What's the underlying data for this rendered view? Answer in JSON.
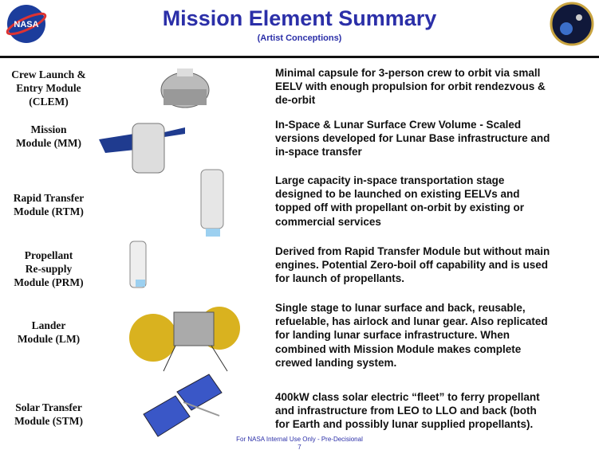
{
  "header": {
    "title": "Mission Element Summary",
    "subtitle": "(Artist Conceptions)"
  },
  "rows": [
    {
      "name_lines": [
        "Crew Launch &",
        "Entry Module",
        "(CLEM)"
      ],
      "description_lines": [
        "Minimal capsule for 3-person crew to orbit via small",
        "EELV with enough propulsion for orbit rendezvous &",
        "de-orbit"
      ]
    },
    {
      "name_lines": [
        "Mission",
        "Module (MM)"
      ],
      "description_lines": [
        "In-Space & Lunar Surface Crew Volume - Scaled",
        "versions developed for Lunar Base infrastructure and",
        "in-space transfer"
      ]
    },
    {
      "name_lines": [
        "Rapid Transfer",
        "Module (RTM)"
      ],
      "description_lines": [
        "Large capacity in-space transportation stage",
        "designed to be launched on existing EELVs and",
        "topped off with propellant on-orbit by existing or",
        "commercial services"
      ]
    },
    {
      "name_lines": [
        "Propellant",
        "Re-supply",
        "Module (PRM)"
      ],
      "description_lines": [
        "Derived from Rapid Transfer Module but without main",
        "engines.  Potential Zero-boil off capability and is used",
        "for launch of propellants."
      ]
    },
    {
      "name_lines": [
        "Lander",
        "Module (LM)"
      ],
      "description_lines": [
        "Single stage to lunar surface and back, reusable,",
        "refuelable, has airlock and lunar gear. Also replicated",
        "for landing lunar surface infrastructure.  When",
        "combined with Mission Module makes complete",
        "crewed landing system."
      ]
    },
    {
      "name_lines": [
        "Solar Transfer",
        "Module (STM)"
      ],
      "description_lines": [
        "400kW class solar electric “fleet” to ferry propellant",
        "and infrastructure from LEO to LLO and back (both",
        "for Earth and possibly lunar supplied propellants)."
      ]
    }
  ],
  "footer": {
    "note": "For NASA Internal Use Only - Pre-Decisional",
    "page": "7"
  }
}
